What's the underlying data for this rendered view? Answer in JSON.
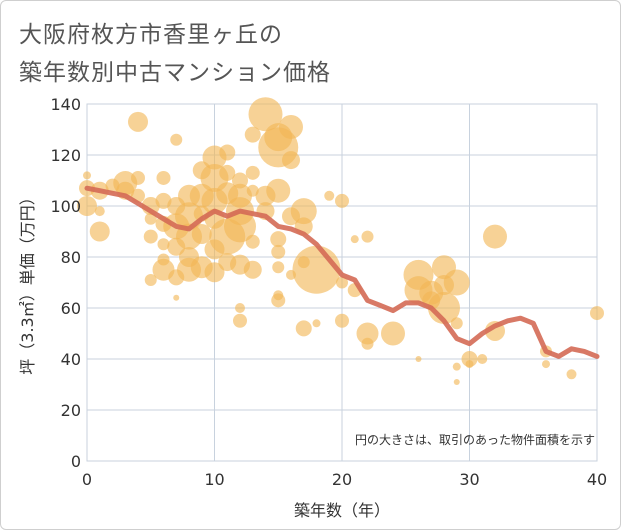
{
  "title_line1": "大阪府枚方市香里ヶ丘の",
  "title_line2": "築年数別中古マンション価格",
  "note": "円の大きさは、取引のあった物件面積を示す",
  "colors": {
    "bubble": "#f2b655",
    "line": "#d46a55",
    "grid": "#c8d2de",
    "plot_bg": "#ffffff"
  },
  "chart_data": {
    "type": "scatter",
    "xlabel": "築年数（年）",
    "ylabel": "坪（3.3㎡）単価（万円）",
    "xlim": [
      0,
      40
    ],
    "ylim": [
      0,
      140
    ],
    "xticks": [
      0,
      10,
      20,
      30,
      40
    ],
    "yticks": [
      0,
      20,
      40,
      60,
      80,
      100,
      120,
      140
    ],
    "grid": true,
    "trend": {
      "x": [
        0,
        1,
        2,
        3,
        4,
        5,
        6,
        7,
        8,
        9,
        10,
        11,
        12,
        13,
        14,
        15,
        16,
        17,
        18,
        19,
        20,
        21,
        22,
        23,
        24,
        25,
        26,
        27,
        28,
        29,
        30,
        31,
        32,
        33,
        34,
        35,
        36,
        37,
        38,
        39,
        40
      ],
      "y": [
        107,
        106,
        105,
        104,
        101,
        98,
        95,
        92,
        91,
        95,
        98,
        96,
        98,
        97,
        96,
        92,
        91,
        89,
        85,
        79,
        73,
        71,
        63,
        61,
        59,
        62,
        62,
        60,
        55,
        48,
        46,
        50,
        53,
        55,
        56,
        54,
        43,
        41,
        44,
        43,
        41
      ]
    },
    "bubbles": [
      {
        "x": 0,
        "y": 112,
        "s": 4
      },
      {
        "x": 0,
        "y": 107,
        "s": 8
      },
      {
        "x": 0,
        "y": 100,
        "s": 10
      },
      {
        "x": 1,
        "y": 106,
        "s": 9
      },
      {
        "x": 1,
        "y": 98,
        "s": 5
      },
      {
        "x": 1,
        "y": 90,
        "s": 10
      },
      {
        "x": 2,
        "y": 108,
        "s": 7
      },
      {
        "x": 3,
        "y": 109,
        "s": 12
      },
      {
        "x": 3,
        "y": 106,
        "s": 9
      },
      {
        "x": 4,
        "y": 133,
        "s": 10
      },
      {
        "x": 4,
        "y": 111,
        "s": 7
      },
      {
        "x": 4,
        "y": 104,
        "s": 7
      },
      {
        "x": 5,
        "y": 100,
        "s": 9
      },
      {
        "x": 5,
        "y": 95,
        "s": 6
      },
      {
        "x": 5,
        "y": 88,
        "s": 7
      },
      {
        "x": 5,
        "y": 71,
        "s": 6
      },
      {
        "x": 6,
        "y": 111,
        "s": 7
      },
      {
        "x": 6,
        "y": 102,
        "s": 8
      },
      {
        "x": 6,
        "y": 93,
        "s": 8
      },
      {
        "x": 6,
        "y": 85,
        "s": 6
      },
      {
        "x": 6,
        "y": 79,
        "s": 6
      },
      {
        "x": 6,
        "y": 75,
        "s": 11
      },
      {
        "x": 7,
        "y": 126,
        "s": 6
      },
      {
        "x": 7,
        "y": 100,
        "s": 9
      },
      {
        "x": 7,
        "y": 92,
        "s": 13
      },
      {
        "x": 7,
        "y": 84,
        "s": 9
      },
      {
        "x": 7,
        "y": 72,
        "s": 8
      },
      {
        "x": 7,
        "y": 64,
        "s": 3
      },
      {
        "x": 8,
        "y": 104,
        "s": 11
      },
      {
        "x": 8,
        "y": 96,
        "s": 14
      },
      {
        "x": 8,
        "y": 88,
        "s": 13
      },
      {
        "x": 8,
        "y": 80,
        "s": 10
      },
      {
        "x": 8,
        "y": 75,
        "s": 12
      },
      {
        "x": 9,
        "y": 114,
        "s": 9
      },
      {
        "x": 9,
        "y": 104,
        "s": 12
      },
      {
        "x": 9,
        "y": 97,
        "s": 8
      },
      {
        "x": 9,
        "y": 89,
        "s": 10
      },
      {
        "x": 9,
        "y": 76,
        "s": 11
      },
      {
        "x": 10,
        "y": 119,
        "s": 12
      },
      {
        "x": 10,
        "y": 111,
        "s": 14
      },
      {
        "x": 10,
        "y": 102,
        "s": 13
      },
      {
        "x": 10,
        "y": 95,
        "s": 10
      },
      {
        "x": 10,
        "y": 83,
        "s": 10
      },
      {
        "x": 10,
        "y": 74,
        "s": 10
      },
      {
        "x": 11,
        "y": 121,
        "s": 8
      },
      {
        "x": 11,
        "y": 113,
        "s": 8
      },
      {
        "x": 11,
        "y": 105,
        "s": 11
      },
      {
        "x": 11,
        "y": 88,
        "s": 18
      },
      {
        "x": 11,
        "y": 78,
        "s": 9
      },
      {
        "x": 12,
        "y": 110,
        "s": 8
      },
      {
        "x": 12,
        "y": 104,
        "s": 12
      },
      {
        "x": 12,
        "y": 98,
        "s": 14
      },
      {
        "x": 12,
        "y": 92,
        "s": 16
      },
      {
        "x": 12,
        "y": 77,
        "s": 10
      },
      {
        "x": 12,
        "y": 60,
        "s": 5
      },
      {
        "x": 12,
        "y": 55,
        "s": 7
      },
      {
        "x": 13,
        "y": 128,
        "s": 8
      },
      {
        "x": 13,
        "y": 113,
        "s": 7
      },
      {
        "x": 13,
        "y": 106,
        "s": 6
      },
      {
        "x": 13,
        "y": 86,
        "s": 7
      },
      {
        "x": 13,
        "y": 75,
        "s": 9
      },
      {
        "x": 14,
        "y": 136,
        "s": 17
      },
      {
        "x": 14,
        "y": 104,
        "s": 10
      },
      {
        "x": 14,
        "y": 98,
        "s": 9
      },
      {
        "x": 15,
        "y": 127,
        "s": 14
      },
      {
        "x": 15,
        "y": 123,
        "s": 20
      },
      {
        "x": 15,
        "y": 106,
        "s": 12
      },
      {
        "x": 15,
        "y": 87,
        "s": 8
      },
      {
        "x": 15,
        "y": 82,
        "s": 7
      },
      {
        "x": 15,
        "y": 76,
        "s": 6
      },
      {
        "x": 15,
        "y": 65,
        "s": 5
      },
      {
        "x": 15,
        "y": 63,
        "s": 7
      },
      {
        "x": 16,
        "y": 131,
        "s": 12
      },
      {
        "x": 16,
        "y": 118,
        "s": 9
      },
      {
        "x": 16,
        "y": 96,
        "s": 9
      },
      {
        "x": 16,
        "y": 73,
        "s": 5
      },
      {
        "x": 17,
        "y": 98,
        "s": 13
      },
      {
        "x": 17,
        "y": 92,
        "s": 9
      },
      {
        "x": 17,
        "y": 78,
        "s": 6
      },
      {
        "x": 17,
        "y": 52,
        "s": 8
      },
      {
        "x": 18,
        "y": 75,
        "s": 24
      },
      {
        "x": 18,
        "y": 54,
        "s": 4
      },
      {
        "x": 19,
        "y": 104,
        "s": 5
      },
      {
        "x": 20,
        "y": 102,
        "s": 7
      },
      {
        "x": 20,
        "y": 70,
        "s": 6
      },
      {
        "x": 20,
        "y": 55,
        "s": 7
      },
      {
        "x": 21,
        "y": 87,
        "s": 4
      },
      {
        "x": 21,
        "y": 67,
        "s": 7
      },
      {
        "x": 22,
        "y": 88,
        "s": 6
      },
      {
        "x": 22,
        "y": 50,
        "s": 11
      },
      {
        "x": 22,
        "y": 46,
        "s": 6
      },
      {
        "x": 24,
        "y": 50,
        "s": 12
      },
      {
        "x": 26,
        "y": 73,
        "s": 15
      },
      {
        "x": 26,
        "y": 67,
        "s": 14
      },
      {
        "x": 26,
        "y": 40,
        "s": 3
      },
      {
        "x": 27,
        "y": 66,
        "s": 12
      },
      {
        "x": 27,
        "y": 63,
        "s": 9
      },
      {
        "x": 28,
        "y": 76,
        "s": 12
      },
      {
        "x": 28,
        "y": 69,
        "s": 10
      },
      {
        "x": 28,
        "y": 60,
        "s": 16
      },
      {
        "x": 29,
        "y": 70,
        "s": 13
      },
      {
        "x": 29,
        "y": 54,
        "s": 6
      },
      {
        "x": 29,
        "y": 37,
        "s": 4
      },
      {
        "x": 29,
        "y": 31,
        "s": 3
      },
      {
        "x": 30,
        "y": 40,
        "s": 8
      },
      {
        "x": 30,
        "y": 38,
        "s": 4
      },
      {
        "x": 31,
        "y": 40,
        "s": 5
      },
      {
        "x": 32,
        "y": 88,
        "s": 12
      },
      {
        "x": 32,
        "y": 51,
        "s": 10
      },
      {
        "x": 36,
        "y": 43,
        "s": 6
      },
      {
        "x": 36,
        "y": 38,
        "s": 4
      },
      {
        "x": 38,
        "y": 34,
        "s": 5
      },
      {
        "x": 40,
        "y": 58,
        "s": 7
      }
    ]
  }
}
